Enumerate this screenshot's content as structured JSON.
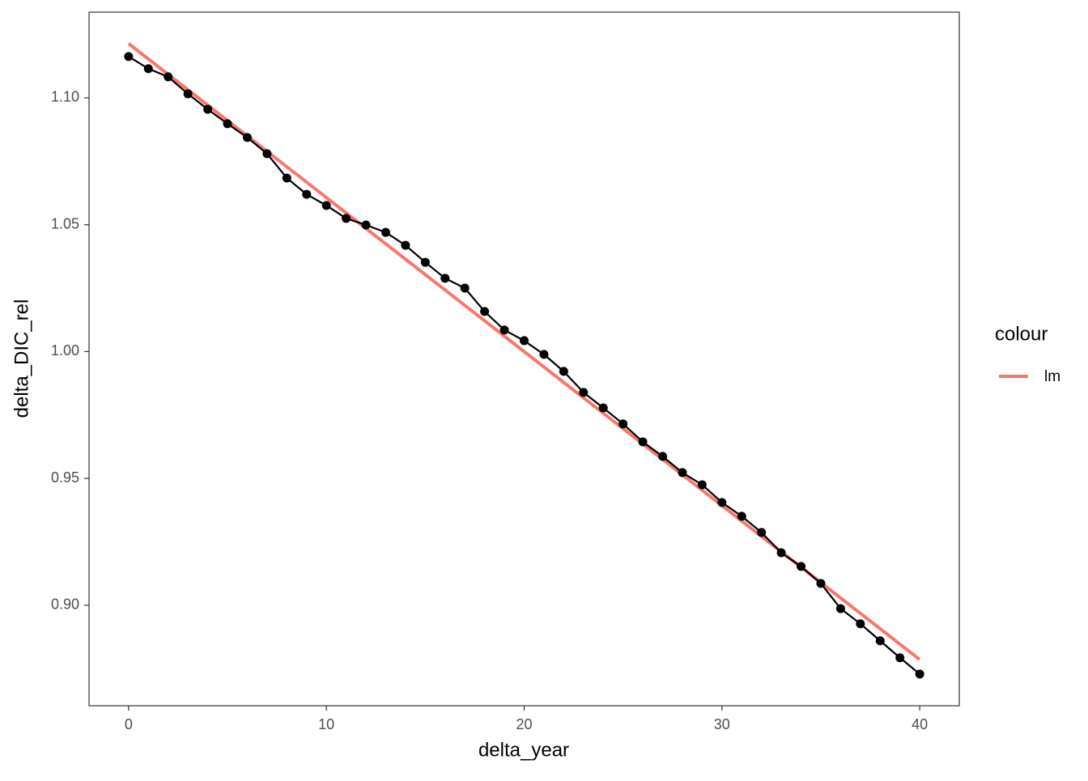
{
  "chart_data": {
    "type": "line",
    "x_label": "delta_year",
    "y_label": "delta_DIC_rel",
    "x": [
      0,
      1,
      2,
      3,
      4,
      5,
      6,
      7,
      8,
      9,
      10,
      11,
      12,
      13,
      14,
      15,
      16,
      17,
      18,
      19,
      20,
      21,
      22,
      23,
      24,
      25,
      26,
      27,
      28,
      29,
      30,
      31,
      32,
      33,
      34,
      35,
      36,
      37,
      38,
      39,
      40
    ],
    "values": [
      1.1163,
      1.1115,
      1.1083,
      1.1016,
      1.0955,
      1.0898,
      1.0844,
      1.078,
      1.0684,
      1.062,
      1.0576,
      1.0525,
      1.0499,
      1.047,
      1.0419,
      1.0352,
      1.0289,
      1.025,
      1.0158,
      1.0085,
      1.0043,
      0.9989,
      0.9922,
      0.9839,
      0.9778,
      0.9715,
      0.9644,
      0.9587,
      0.9523,
      0.9475,
      0.9405,
      0.9351,
      0.9287,
      0.9207,
      0.9153,
      0.9086,
      0.8987,
      0.8927,
      0.886,
      0.8793,
      0.8729
    ],
    "color": "#000000",
    "fit": {
      "name": "lm",
      "color": "#F8766D",
      "x": [
        0,
        40
      ],
      "values": [
        1.1214,
        0.8786
      ]
    },
    "legend_title": "colour",
    "xlim": [
      -2,
      42
    ],
    "xticks": [
      0,
      10,
      20,
      30,
      40
    ],
    "ylim": [
      0.8604,
      1.1338
    ],
    "yticks": [
      {
        "value": 0.9,
        "label": "0.90"
      },
      0.95,
      {
        "value": 1.0,
        "label": "1.00"
      },
      1.05,
      {
        "value": 1.1,
        "label": "1.10"
      }
    ],
    "grid": false
  }
}
